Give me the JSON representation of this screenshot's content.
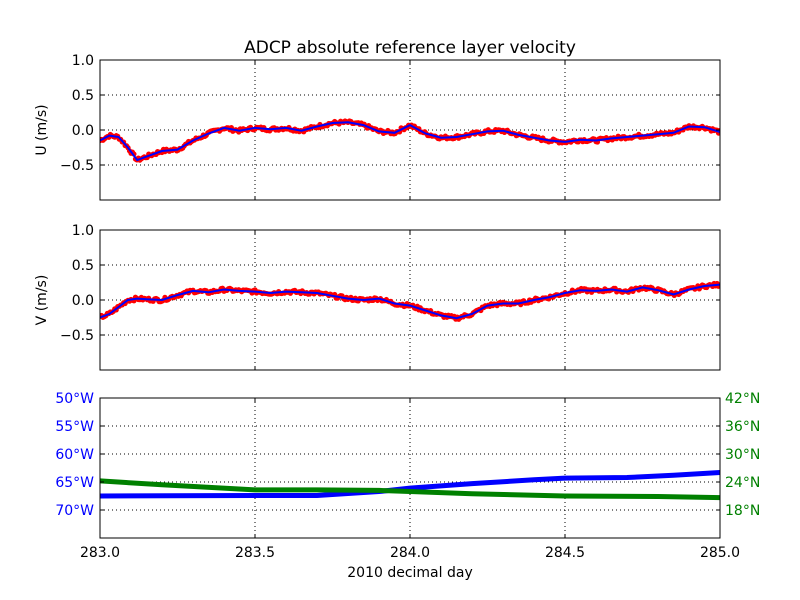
{
  "title": "ADCP absolute reference layer velocity",
  "xlabel": "2010 decimal day",
  "x_ticks": [
    "283.0",
    "283.5",
    "284.0",
    "284.5",
    "285.0"
  ],
  "colors": {
    "raw_points": "#ff0000",
    "smoothed_line": "#0000ff",
    "longitude": "#0000ff",
    "latitude": "#008000",
    "grid": "#000000"
  },
  "chart_data": [
    {
      "type": "line",
      "panel": "U",
      "ylabel": "U (m/s)",
      "xlim": [
        283.0,
        285.0
      ],
      "ylim": [
        -1.0,
        1.0
      ],
      "y_ticks": [
        "1.0",
        "0.5",
        "0.0",
        "−0.5"
      ],
      "grid": true,
      "series": [
        {
          "style": "dots+line",
          "x": [
            283.0,
            283.03,
            283.06,
            283.09,
            283.12,
            283.15,
            283.2,
            283.25,
            283.3,
            283.35,
            283.4,
            283.45,
            283.5,
            283.55,
            283.6,
            283.65,
            283.7,
            283.75,
            283.8,
            283.85,
            283.9,
            283.95,
            284.0,
            284.05,
            284.1,
            284.15,
            284.2,
            284.25,
            284.3,
            284.35,
            284.4,
            284.45,
            284.5,
            284.55,
            284.6,
            284.65,
            284.7,
            284.75,
            284.8,
            284.85,
            284.9,
            284.95,
            285.0
          ],
          "y": [
            -0.15,
            -0.08,
            -0.1,
            -0.25,
            -0.43,
            -0.38,
            -0.3,
            -0.28,
            -0.15,
            -0.05,
            0.03,
            -0.01,
            0.03,
            0.01,
            0.03,
            -0.01,
            0.05,
            0.1,
            0.11,
            0.07,
            -0.02,
            -0.04,
            0.07,
            -0.05,
            -0.11,
            -0.1,
            -0.06,
            -0.02,
            -0.01,
            -0.07,
            -0.11,
            -0.15,
            -0.17,
            -0.14,
            -0.15,
            -0.12,
            -0.1,
            -0.08,
            -0.06,
            -0.04,
            0.05,
            0.04,
            -0.03
          ]
        }
      ]
    },
    {
      "type": "line",
      "panel": "V",
      "ylabel": "V (m/s)",
      "xlim": [
        283.0,
        285.0
      ],
      "ylim": [
        -1.0,
        1.0
      ],
      "y_ticks": [
        "1.0",
        "0.5",
        "0.0",
        "−0.5"
      ],
      "grid": true,
      "series": [
        {
          "style": "dots+line",
          "x": [
            283.0,
            283.03,
            283.06,
            283.09,
            283.12,
            283.15,
            283.2,
            283.25,
            283.3,
            283.35,
            283.4,
            283.45,
            283.5,
            283.55,
            283.6,
            283.65,
            283.7,
            283.75,
            283.8,
            283.85,
            283.9,
            283.95,
            284.0,
            284.05,
            284.1,
            284.15,
            284.2,
            284.25,
            284.3,
            284.35,
            284.4,
            284.45,
            284.5,
            284.55,
            284.6,
            284.65,
            284.7,
            284.75,
            284.8,
            284.85,
            284.9,
            284.95,
            285.0
          ],
          "y": [
            -0.25,
            -0.2,
            -0.1,
            0.0,
            0.02,
            0.01,
            0.0,
            0.07,
            0.13,
            0.11,
            0.15,
            0.13,
            0.12,
            0.1,
            0.12,
            0.11,
            0.1,
            0.06,
            0.02,
            0.0,
            0.02,
            -0.05,
            -0.08,
            -0.15,
            -0.22,
            -0.26,
            -0.2,
            -0.08,
            -0.05,
            -0.05,
            0.0,
            0.04,
            0.1,
            0.14,
            0.13,
            0.15,
            0.12,
            0.18,
            0.14,
            0.08,
            0.15,
            0.2,
            0.22
          ]
        }
      ]
    },
    {
      "type": "line",
      "panel": "position",
      "xlim": [
        283.0,
        285.0
      ],
      "left_axis": {
        "ylim": [
          -75,
          -50
        ],
        "y_ticks": [
          "50°W",
          "55°W",
          "60°W",
          "65°W",
          "70°W"
        ]
      },
      "right_axis": {
        "y_ticks": [
          "42°N",
          "36°N",
          "30°N",
          "24°N",
          "18°N"
        ]
      },
      "grid": true,
      "series": [
        {
          "axis": "left",
          "x": [
            283.0,
            283.5,
            283.7,
            283.9,
            284.0,
            284.2,
            284.4,
            284.5,
            284.7,
            284.85,
            285.0
          ],
          "y": [
            -67.5,
            -67.4,
            -67.4,
            -66.7,
            -66.1,
            -65.3,
            -64.6,
            -64.3,
            -64.2,
            -63.8,
            -63.3
          ]
        },
        {
          "axis": "right",
          "x": [
            283.0,
            283.2,
            283.5,
            283.7,
            283.9,
            284.0,
            284.2,
            284.5,
            284.8,
            285.0
          ],
          "y": [
            -64.8,
            -65.5,
            -66.4,
            -66.4,
            -66.5,
            -66.7,
            -67.1,
            -67.5,
            -67.6,
            -67.8
          ]
        }
      ]
    }
  ]
}
